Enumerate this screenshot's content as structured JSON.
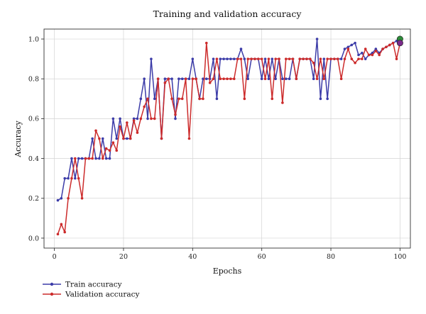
{
  "chart_data": {
    "type": "line",
    "title": "Training and validation accuracy",
    "xlabel": "Epochs",
    "ylabel": "Accuracy",
    "xlim": [
      -3,
      103
    ],
    "ylim": [
      -0.05,
      1.05
    ],
    "x_ticks": [
      0,
      20,
      40,
      60,
      80,
      100
    ],
    "y_ticks": [
      0.0,
      0.2,
      0.4,
      0.6,
      0.8,
      1.0
    ],
    "x_tick_labels": [
      "0",
      "20",
      "40",
      "60",
      "80",
      "100"
    ],
    "y_tick_labels": [
      "0.0",
      "0.2",
      "0.4",
      "0.6",
      "0.8",
      "1.0"
    ],
    "grid": true,
    "legend_position": "below-left",
    "series": [
      {
        "name": "Train accuracy",
        "color": "#3c3ca8",
        "x": [
          1,
          2,
          3,
          4,
          5,
          6,
          7,
          8,
          9,
          10,
          11,
          12,
          13,
          14,
          15,
          16,
          17,
          18,
          19,
          20,
          21,
          22,
          23,
          24,
          25,
          26,
          27,
          28,
          29,
          30,
          31,
          32,
          33,
          34,
          35,
          36,
          37,
          38,
          39,
          40,
          41,
          42,
          43,
          44,
          45,
          46,
          47,
          48,
          49,
          50,
          51,
          52,
          53,
          54,
          55,
          56,
          57,
          58,
          59,
          60,
          61,
          62,
          63,
          64,
          65,
          66,
          67,
          68,
          69,
          70,
          71,
          72,
          73,
          74,
          75,
          76,
          77,
          78,
          79,
          80,
          81,
          82,
          83,
          84,
          85,
          86,
          87,
          88,
          89,
          90,
          91,
          92,
          93,
          94,
          95,
          96,
          97,
          98,
          99,
          100
        ],
        "values": [
          0.19,
          0.2,
          0.3,
          0.3,
          0.4,
          0.3,
          0.4,
          0.4,
          0.4,
          0.4,
          0.5,
          0.4,
          0.4,
          0.5,
          0.4,
          0.4,
          0.6,
          0.5,
          0.6,
          0.5,
          0.5,
          0.5,
          0.6,
          0.6,
          0.7,
          0.8,
          0.6,
          0.9,
          0.7,
          0.8,
          0.5,
          0.8,
          0.8,
          0.8,
          0.6,
          0.8,
          0.8,
          0.8,
          0.8,
          0.9,
          0.8,
          0.7,
          0.8,
          0.8,
          0.8,
          0.9,
          0.7,
          0.9,
          0.9,
          0.9,
          0.9,
          0.9,
          0.9,
          0.95,
          0.9,
          0.8,
          0.9,
          0.9,
          0.9,
          0.8,
          0.9,
          0.8,
          0.9,
          0.8,
          0.9,
          0.8,
          0.8,
          0.8,
          0.9,
          0.8,
          0.9,
          0.9,
          0.9,
          0.9,
          0.8,
          1.0,
          0.7,
          0.9,
          0.7,
          0.9,
          0.9,
          0.9,
          0.9,
          0.95,
          0.96,
          0.97,
          0.98,
          0.92,
          0.93,
          0.9,
          0.92,
          0.93,
          0.95,
          0.93,
          0.95,
          0.96,
          0.97,
          0.98,
          0.99,
          1.0
        ]
      },
      {
        "name": "Validation accuracy",
        "color": "#cc2b2b",
        "x": [
          1,
          2,
          3,
          4,
          5,
          6,
          7,
          8,
          9,
          10,
          11,
          12,
          13,
          14,
          15,
          16,
          17,
          18,
          19,
          20,
          21,
          22,
          23,
          24,
          25,
          26,
          27,
          28,
          29,
          30,
          31,
          32,
          33,
          34,
          35,
          36,
          37,
          38,
          39,
          40,
          41,
          42,
          43,
          44,
          45,
          46,
          47,
          48,
          49,
          50,
          51,
          52,
          53,
          54,
          55,
          56,
          57,
          58,
          59,
          60,
          61,
          62,
          63,
          64,
          65,
          66,
          67,
          68,
          69,
          70,
          71,
          72,
          73,
          74,
          75,
          76,
          77,
          78,
          79,
          80,
          81,
          82,
          83,
          84,
          85,
          86,
          87,
          88,
          89,
          90,
          91,
          92,
          93,
          94,
          95,
          96,
          97,
          98,
          99,
          100
        ],
        "values": [
          0.02,
          0.07,
          0.03,
          0.2,
          0.3,
          0.4,
          0.3,
          0.2,
          0.4,
          0.4,
          0.4,
          0.54,
          0.5,
          0.4,
          0.45,
          0.44,
          0.48,
          0.44,
          0.56,
          0.5,
          0.58,
          0.5,
          0.59,
          0.53,
          0.6,
          0.66,
          0.7,
          0.6,
          0.6,
          0.8,
          0.5,
          0.78,
          0.8,
          0.7,
          0.62,
          0.7,
          0.7,
          0.8,
          0.5,
          0.8,
          0.8,
          0.7,
          0.7,
          0.98,
          0.78,
          0.8,
          0.9,
          0.8,
          0.8,
          0.8,
          0.8,
          0.8,
          0.9,
          0.9,
          0.7,
          0.9,
          0.9,
          0.9,
          0.9,
          0.9,
          0.8,
          0.9,
          0.7,
          0.9,
          0.9,
          0.68,
          0.9,
          0.9,
          0.9,
          0.8,
          0.9,
          0.9,
          0.9,
          0.9,
          0.88,
          0.8,
          0.9,
          0.8,
          0.9,
          0.9,
          0.9,
          0.9,
          0.8,
          0.9,
          0.95,
          0.9,
          0.88,
          0.9,
          0.9,
          0.95,
          0.92,
          0.92,
          0.94,
          0.92,
          0.95,
          0.96,
          0.97,
          0.98,
          0.9,
          0.98
        ]
      }
    ],
    "highlight_markers": [
      {
        "series": "Train accuracy",
        "x": 100,
        "y": 1.0,
        "color": "#2e8b3a"
      },
      {
        "series": "Validation accuracy",
        "x": 100,
        "y": 0.98,
        "color": "#7a2a8a"
      }
    ]
  }
}
